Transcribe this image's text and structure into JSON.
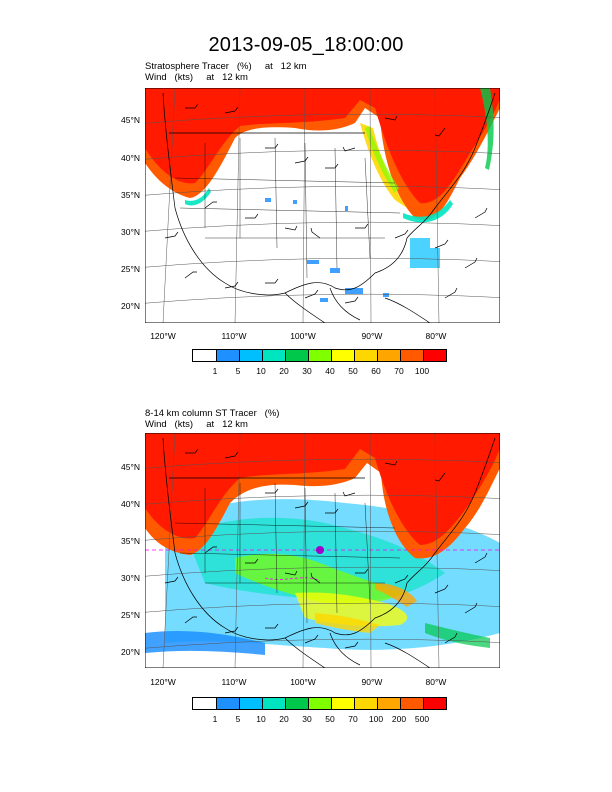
{
  "title": "2013-09-05_18:00:00",
  "panels": [
    {
      "subtitle_line1": "Stratosphere Tracer   (%)     at   12 km",
      "subtitle_line2": "Wind   (kts)     at   12 km",
      "lat_labels": [
        "45°N",
        "40°N",
        "35°N",
        "30°N",
        "25°N",
        "20°N"
      ],
      "lon_labels": [
        "120°W",
        "110°W",
        "100°W",
        "90°W",
        "80°W"
      ],
      "colorbar": {
        "labels": [
          "1",
          "5",
          "10",
          "20",
          "30",
          "40",
          "50",
          "60",
          "70",
          "100"
        ],
        "colors": [
          "#ffffff",
          "#1e90ff",
          "#00bfff",
          "#00e5c0",
          "#00c84a",
          "#7fff00",
          "#ffff00",
          "#ffd700",
          "#ffa500",
          "#ff5a00",
          "#ff0000"
        ]
      }
    },
    {
      "subtitle_line1": "8-14 km column ST Tracer   (%)",
      "subtitle_line2": "Wind   (kts)     at   12 km",
      "lat_labels": [
        "45°N",
        "40°N",
        "35°N",
        "30°N",
        "25°N",
        "20°N"
      ],
      "lon_labels": [
        "120°W",
        "110°W",
        "100°W",
        "90°W",
        "80°W"
      ],
      "colorbar": {
        "labels": [
          "1",
          "5",
          "10",
          "20",
          "30",
          "50",
          "70",
          "100",
          "200",
          "500"
        ],
        "colors": [
          "#ffffff",
          "#1e90ff",
          "#00bfff",
          "#00e5c0",
          "#00c84a",
          "#7fff00",
          "#ffff00",
          "#ffd700",
          "#ffa500",
          "#ff5a00",
          "#ff0000"
        ]
      }
    }
  ]
}
